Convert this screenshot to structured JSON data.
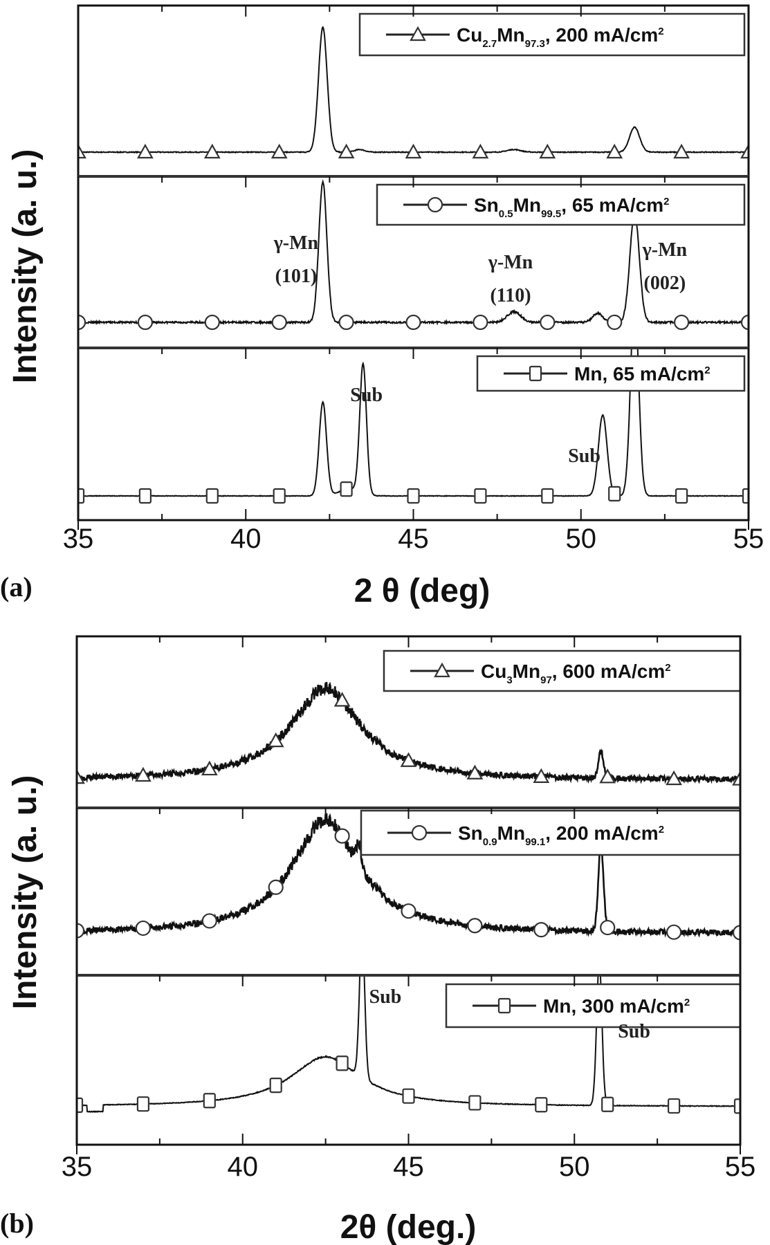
{
  "figure": {
    "panel_a_label": "(a)",
    "panel_b_label": "(b)",
    "panel_a_xlabel": "2 θ (deg)",
    "panel_b_xlabel": "2θ (deg.)",
    "ylabel": "Intensity (a. u.)",
    "xticks": [
      "35",
      "40",
      "45",
      "50",
      "55"
    ]
  },
  "chart_data": [
    {
      "type": "line",
      "panel": "a",
      "title": "",
      "xlabel": "2 θ (deg)",
      "ylabel": "Intensity (a. u.)",
      "xlim": [
        35,
        55
      ],
      "xticks": [
        35,
        40,
        45,
        50,
        55
      ],
      "grid": false,
      "legend_position": "upper right (per stacked sub-panel)",
      "series": [
        {
          "name": "Cu2.7Mn97.3, 200 mA/cm2",
          "legend": {
            "pre": "Cu",
            "s1": "2.7",
            "mid": "Mn",
            "s2": "97.3",
            "post": ", 200 mA/cm",
            "sup": "2"
          },
          "marker": "triangle",
          "peaks": [
            {
              "x": 42.3,
              "h": 0.95,
              "w": 0.13
            },
            {
              "x": 51.6,
              "h": 0.19,
              "w": 0.15
            },
            {
              "x": 48.0,
              "h": 0.02,
              "w": 0.2
            },
            {
              "x": 43.4,
              "h": 0.02,
              "w": 0.15
            }
          ],
          "noise": 0.006
        },
        {
          "name": "Sn0.5Mn99.5, 65 mA/cm2",
          "legend": {
            "pre": "Sn",
            "s1": "0.5",
            "mid": "Mn",
            "s2": "99.5",
            "post": ", 65 mA/cm",
            "sup": "2"
          },
          "marker": "circle",
          "peaks": [
            {
              "x": 42.3,
              "h": 0.92,
              "w": 0.12
            },
            {
              "x": 51.6,
              "h": 0.72,
              "w": 0.14
            },
            {
              "x": 48.0,
              "h": 0.07,
              "w": 0.2
            },
            {
              "x": 50.5,
              "h": 0.06,
              "w": 0.15
            }
          ],
          "noise": 0.012
        },
        {
          "name": "Mn, 65 mA/cm2",
          "legend": {
            "pre": "Mn",
            "s1": "",
            "mid": "",
            "s2": "",
            "post": ", 65 mA/cm",
            "sup": "2"
          },
          "marker": "square",
          "peaks": [
            {
              "x": 42.3,
              "h": 0.52,
              "w": 0.11
            },
            {
              "x": 43.5,
              "h": 0.72,
              "w": 0.1
            },
            {
              "x": 50.65,
              "h": 0.45,
              "w": 0.13
            },
            {
              "x": 51.6,
              "h": 1.1,
              "w": 0.12
            },
            {
              "x": 43.1,
              "h": 0.04,
              "w": 0.3
            }
          ],
          "noise": 0.003
        }
      ],
      "annotations": [
        {
          "text": "γ-Mn",
          "x": 41.5,
          "series": 1,
          "line": 1
        },
        {
          "text": "(101)",
          "x": 41.5,
          "series": 1,
          "line": 2
        },
        {
          "text": "γ-Mn",
          "x": 47.9,
          "series": 1,
          "line": 1
        },
        {
          "text": "(110)",
          "x": 47.9,
          "series": 1,
          "line": 2
        },
        {
          "text": "γ-Mn",
          "x": 52.5,
          "series": 1,
          "line": 1
        },
        {
          "text": "(002)",
          "x": 52.5,
          "series": 1,
          "line": 2
        },
        {
          "text": "Sub",
          "x": 43.6,
          "series": 2
        },
        {
          "text": "Sub",
          "x": 50.1,
          "series": 2
        }
      ],
      "marker_x": [
        35,
        37,
        39,
        41,
        43,
        45,
        47,
        49,
        51,
        53,
        55
      ]
    },
    {
      "type": "line",
      "panel": "b",
      "title": "",
      "xlabel": "2θ (deg.)",
      "ylabel": "Intensity (a. u.)",
      "xlim": [
        35,
        55
      ],
      "xticks": [
        35,
        40,
        45,
        50,
        55
      ],
      "grid": false,
      "legend_position": "upper right (per stacked sub-panel)",
      "series": [
        {
          "name": "Cu3Mn97, 600 mA/cm2",
          "legend": {
            "pre": "Cu",
            "s1": "3",
            "mid": "Mn",
            "s2": "97",
            "post": ", 600 mA/cm",
            "sup": "2"
          },
          "marker": "triangle",
          "broad": {
            "x": 42.5,
            "h": 0.78,
            "w": 1.3
          },
          "peaks": [
            {
              "x": 50.8,
              "h": 0.22,
              "w": 0.08
            }
          ],
          "noise": 0.045
        },
        {
          "name": "Sn0.9Mn99.1, 200 mA/cm2",
          "legend": {
            "pre": "Sn",
            "s1": "0.9",
            "mid": "Mn",
            "s2": "99.1",
            "post": ", 200 mA/cm",
            "sup": "2"
          },
          "marker": "circle",
          "broad": {
            "x": 42.5,
            "h": 0.82,
            "w": 1.25
          },
          "peaks": [
            {
              "x": 50.8,
              "h": 0.62,
              "w": 0.08
            },
            {
              "x": 43.5,
              "h": 0.15,
              "w": 0.08
            }
          ],
          "noise": 0.04
        },
        {
          "name": "Mn, 300 mA/cm2",
          "legend": {
            "pre": "Mn",
            "s1": "",
            "mid": "",
            "s2": "",
            "post": ", 300 mA/cm",
            "sup": "2"
          },
          "marker": "square",
          "broad": {
            "x": 42.5,
            "h": 0.45,
            "w": 1.3
          },
          "peaks": [
            {
              "x": 43.6,
              "h": 1.3,
              "w": 0.08
            },
            {
              "x": 50.75,
              "h": 1.3,
              "w": 0.08
            }
          ],
          "noise": 0.006
        }
      ],
      "annotations": [
        {
          "text": "Sub",
          "x": 44.3,
          "series": 2,
          "pos": "top"
        },
        {
          "text": "Sub",
          "x": 51.8,
          "series": 2,
          "pos": "mid"
        }
      ],
      "marker_x": [
        35,
        37,
        39,
        41,
        43,
        45,
        47,
        49,
        51,
        53,
        55
      ]
    }
  ]
}
